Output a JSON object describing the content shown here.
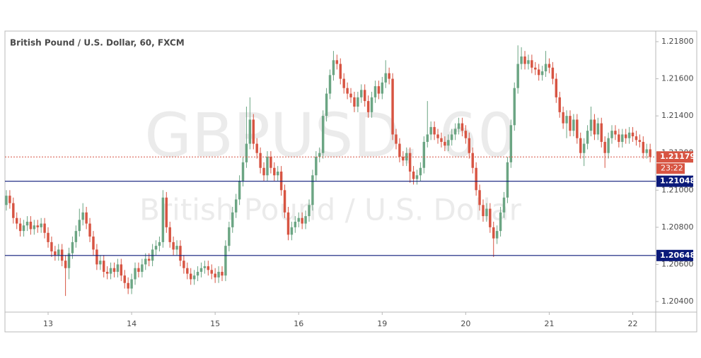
{
  "chart_data": {
    "type": "candlestick",
    "title": "British Pound / U.S. Dollar, 60, FXCM",
    "watermark": {
      "symbol": "GBPUSD, 60",
      "description": "British Pound / U.S. Dollar"
    },
    "up_color": "#6ba583",
    "down_color": "#d75442",
    "xlim": [
      -0.4,
      186.6
    ],
    "ylim": [
      1.20343,
      1.21857
    ],
    "yticks": [
      {
        "value": 1.204,
        "label": "1.20400"
      },
      {
        "value": 1.206,
        "label": "1.20600"
      },
      {
        "value": 1.208,
        "label": "1.20800"
      },
      {
        "value": 1.21,
        "label": "1.21000"
      },
      {
        "value": 1.212,
        "label": "1.21200"
      },
      {
        "value": 1.214,
        "label": "1.21400"
      },
      {
        "value": 1.216,
        "label": "1.21600"
      },
      {
        "value": 1.218,
        "label": "1.21800"
      }
    ],
    "xticks": [
      {
        "value": 12,
        "label": "13"
      },
      {
        "value": 36,
        "label": "14"
      },
      {
        "value": 60,
        "label": "15"
      },
      {
        "value": 84,
        "label": "16"
      },
      {
        "value": 108,
        "label": "19"
      },
      {
        "value": 132,
        "label": "20"
      },
      {
        "value": 156,
        "label": "21"
      },
      {
        "value": 180,
        "label": "22"
      }
    ],
    "levels": [
      {
        "value": 1.21048,
        "label": "1.21048",
        "color": "#0b1a7a"
      },
      {
        "value": 1.20648,
        "label": "1.20648",
        "color": "#0b1a7a"
      }
    ],
    "last_price": {
      "value": 1.21179,
      "label": "1.21179",
      "countdown": "23:22",
      "color": "#d75442"
    },
    "candles": [
      [
        1.2092,
        1.21,
        1.2089,
        1.2097
      ],
      [
        1.2097,
        1.21,
        1.209,
        1.2093
      ],
      [
        1.2093,
        1.2096,
        1.2082,
        1.2085
      ],
      [
        1.2085,
        1.2088,
        1.2079,
        1.2082
      ],
      [
        1.2082,
        1.2085,
        1.2075,
        1.2078
      ],
      [
        1.2078,
        1.2084,
        1.2075,
        1.2081
      ],
      [
        1.2081,
        1.2086,
        1.2078,
        1.2083
      ],
      [
        1.2083,
        1.2086,
        1.2076,
        1.2079
      ],
      [
        1.2079,
        1.2084,
        1.2076,
        1.2081
      ],
      [
        1.2081,
        1.2084,
        1.2077,
        1.208
      ],
      [
        1.208,
        1.2085,
        1.2077,
        1.2082
      ],
      [
        1.2082,
        1.2085,
        1.2074,
        1.2077
      ],
      [
        1.2077,
        1.208,
        1.2069,
        1.2072
      ],
      [
        1.2072,
        1.2075,
        1.2064,
        1.2067
      ],
      [
        1.2067,
        1.207,
        1.2062,
        1.2065
      ],
      [
        1.2065,
        1.2071,
        1.2062,
        1.2068
      ],
      [
        1.2068,
        1.2071,
        1.2059,
        1.2062
      ],
      [
        1.2062,
        1.2065,
        1.2043,
        1.2058
      ],
      [
        1.2058,
        1.2069,
        1.2052,
        1.2066
      ],
      [
        1.2066,
        1.2075,
        1.2063,
        1.2072
      ],
      [
        1.2072,
        1.2081,
        1.2069,
        1.2078
      ],
      [
        1.2078,
        1.209,
        1.2075,
        1.2084
      ],
      [
        1.2084,
        1.2093,
        1.2081,
        1.2088
      ],
      [
        1.2088,
        1.2091,
        1.2079,
        1.2082
      ],
      [
        1.2082,
        1.2085,
        1.2072,
        1.2075
      ],
      [
        1.2075,
        1.2078,
        1.2065,
        1.2068
      ],
      [
        1.2068,
        1.2071,
        1.2057,
        1.206
      ],
      [
        1.206,
        1.2065,
        1.2057,
        1.2062
      ],
      [
        1.2062,
        1.2065,
        1.2053,
        1.2056
      ],
      [
        1.2056,
        1.2059,
        1.2052,
        1.2055
      ],
      [
        1.2055,
        1.2061,
        1.2052,
        1.2058
      ],
      [
        1.2058,
        1.2061,
        1.2053,
        1.2056
      ],
      [
        1.2056,
        1.2063,
        1.2053,
        1.206
      ],
      [
        1.206,
        1.2063,
        1.2051,
        1.2054
      ],
      [
        1.2054,
        1.2057,
        1.2047,
        1.205
      ],
      [
        1.205,
        1.2053,
        1.2044,
        1.2047
      ],
      [
        1.2047,
        1.2055,
        1.2044,
        1.2052
      ],
      [
        1.2052,
        1.2061,
        1.2049,
        1.2058
      ],
      [
        1.2058,
        1.2061,
        1.2053,
        1.2056
      ],
      [
        1.2056,
        1.2063,
        1.2053,
        1.206
      ],
      [
        1.206,
        1.2066,
        1.2057,
        1.2063
      ],
      [
        1.2063,
        1.2066,
        1.2059,
        1.2062
      ],
      [
        1.2062,
        1.2071,
        1.2059,
        1.2068
      ],
      [
        1.2068,
        1.2073,
        1.2065,
        1.207
      ],
      [
        1.207,
        1.2075,
        1.2067,
        1.2072
      ],
      [
        1.2072,
        1.21,
        1.2069,
        1.2096
      ],
      [
        1.2096,
        1.2099,
        1.2077,
        1.208
      ],
      [
        1.208,
        1.2083,
        1.2069,
        1.2072
      ],
      [
        1.2072,
        1.2075,
        1.2065,
        1.2068
      ],
      [
        1.2068,
        1.2073,
        1.2065,
        1.207
      ],
      [
        1.207,
        1.2073,
        1.2059,
        1.2062
      ],
      [
        1.2062,
        1.2065,
        1.2055,
        1.2058
      ],
      [
        1.2058,
        1.2061,
        1.2052,
        1.2055
      ],
      [
        1.2055,
        1.2058,
        1.2049,
        1.2052
      ],
      [
        1.2052,
        1.2057,
        1.2049,
        1.2054
      ],
      [
        1.2054,
        1.2059,
        1.2051,
        1.2056
      ],
      [
        1.2056,
        1.2061,
        1.2053,
        1.2058
      ],
      [
        1.2058,
        1.2062,
        1.2055,
        1.2059
      ],
      [
        1.2059,
        1.2062,
        1.2054,
        1.2057
      ],
      [
        1.2057,
        1.206,
        1.2052,
        1.2055
      ],
      [
        1.2055,
        1.2058,
        1.205,
        1.2053
      ],
      [
        1.2053,
        1.2059,
        1.205,
        1.2056
      ],
      [
        1.2056,
        1.2059,
        1.2051,
        1.2054
      ],
      [
        1.2054,
        1.2073,
        1.2051,
        1.207
      ],
      [
        1.207,
        1.2083,
        1.2067,
        1.208
      ],
      [
        1.208,
        1.2091,
        1.2077,
        1.2088
      ],
      [
        1.2088,
        1.2098,
        1.2085,
        1.2095
      ],
      [
        1.2095,
        1.2108,
        1.2092,
        1.2105
      ],
      [
        1.2105,
        1.2118,
        1.2102,
        1.2115
      ],
      [
        1.2115,
        1.2145,
        1.2112,
        1.2125
      ],
      [
        1.2125,
        1.215,
        1.2122,
        1.2138
      ],
      [
        1.2138,
        1.2141,
        1.2122,
        1.2125
      ],
      [
        1.2125,
        1.2128,
        1.2117,
        1.212
      ],
      [
        1.212,
        1.2123,
        1.2109,
        1.2112
      ],
      [
        1.2112,
        1.2115,
        1.2105,
        1.2108
      ],
      [
        1.2108,
        1.2121,
        1.2105,
        1.2118
      ],
      [
        1.2118,
        1.2121,
        1.2109,
        1.2112
      ],
      [
        1.2112,
        1.2115,
        1.2105,
        1.2108
      ],
      [
        1.2108,
        1.2113,
        1.2105,
        1.211
      ],
      [
        1.211,
        1.2113,
        1.2097,
        1.21
      ],
      [
        1.21,
        1.2103,
        1.2085,
        1.2088
      ],
      [
        1.2088,
        1.2091,
        1.2073,
        1.2076
      ],
      [
        1.2076,
        1.2083,
        1.2073,
        1.208
      ],
      [
        1.208,
        1.2086,
        1.2077,
        1.2083
      ],
      [
        1.2083,
        1.2088,
        1.208,
        1.2085
      ],
      [
        1.2085,
        1.2088,
        1.2079,
        1.2082
      ],
      [
        1.2082,
        1.2089,
        1.2079,
        1.2086
      ],
      [
        1.2086,
        1.2095,
        1.2083,
        1.2092
      ],
      [
        1.2092,
        1.2111,
        1.2089,
        1.2108
      ],
      [
        1.2108,
        1.2121,
        1.2105,
        1.2118
      ],
      [
        1.2118,
        1.2123,
        1.2115,
        1.212
      ],
      [
        1.212,
        1.2143,
        1.2117,
        1.214
      ],
      [
        1.214,
        1.2155,
        1.2137,
        1.2152
      ],
      [
        1.2152,
        1.2165,
        1.2149,
        1.2162
      ],
      [
        1.2162,
        1.2175,
        1.2159,
        1.217
      ],
      [
        1.217,
        1.2173,
        1.2165,
        1.2168
      ],
      [
        1.2168,
        1.2171,
        1.2157,
        1.216
      ],
      [
        1.216,
        1.2163,
        1.2152,
        1.2155
      ],
      [
        1.2155,
        1.2158,
        1.2149,
        1.2152
      ],
      [
        1.2152,
        1.2155,
        1.2147,
        1.215
      ],
      [
        1.215,
        1.2153,
        1.2142,
        1.2145
      ],
      [
        1.2145,
        1.2153,
        1.2142,
        1.215
      ],
      [
        1.215,
        1.2157,
        1.2147,
        1.2154
      ],
      [
        1.2154,
        1.2157,
        1.2145,
        1.2148
      ],
      [
        1.2148,
        1.2151,
        1.2139,
        1.2142
      ],
      [
        1.2142,
        1.2153,
        1.2139,
        1.215
      ],
      [
        1.215,
        1.2159,
        1.2147,
        1.2156
      ],
      [
        1.2156,
        1.2159,
        1.2149,
        1.2152
      ],
      [
        1.2152,
        1.2161,
        1.2149,
        1.2158
      ],
      [
        1.2158,
        1.217,
        1.2155,
        1.2163
      ],
      [
        1.2163,
        1.2166,
        1.2157,
        1.216
      ],
      [
        1.216,
        1.2163,
        1.2127,
        1.213
      ],
      [
        1.213,
        1.2133,
        1.2122,
        1.2125
      ],
      [
        1.2125,
        1.2128,
        1.2115,
        1.2118
      ],
      [
        1.2118,
        1.2121,
        1.2113,
        1.2116
      ],
      [
        1.2116,
        1.2123,
        1.2113,
        1.212
      ],
      [
        1.212,
        1.2123,
        1.2104,
        1.211
      ],
      [
        1.211,
        1.2113,
        1.2103,
        1.2106
      ],
      [
        1.2106,
        1.2111,
        1.2103,
        1.2108
      ],
      [
        1.2108,
        1.2115,
        1.2105,
        1.2112
      ],
      [
        1.2112,
        1.2129,
        1.2109,
        1.2126
      ],
      [
        1.2126,
        1.2148,
        1.2123,
        1.213
      ],
      [
        1.213,
        1.2137,
        1.2127,
        1.2134
      ],
      [
        1.2134,
        1.2137,
        1.2127,
        1.213
      ],
      [
        1.213,
        1.2133,
        1.2125,
        1.2128
      ],
      [
        1.2128,
        1.2131,
        1.2123,
        1.2126
      ],
      [
        1.2126,
        1.2129,
        1.2121,
        1.2124
      ],
      [
        1.2124,
        1.213,
        1.2121,
        1.2127
      ],
      [
        1.2127,
        1.2133,
        1.2124,
        1.213
      ],
      [
        1.213,
        1.2136,
        1.2127,
        1.2133
      ],
      [
        1.2133,
        1.2139,
        1.213,
        1.2136
      ],
      [
        1.2136,
        1.2139,
        1.2129,
        1.2132
      ],
      [
        1.2132,
        1.2135,
        1.2125,
        1.2128
      ],
      [
        1.2128,
        1.2131,
        1.2117,
        1.212
      ],
      [
        1.212,
        1.2123,
        1.2109,
        1.2112
      ],
      [
        1.2112,
        1.2115,
        1.2097,
        1.21
      ],
      [
        1.21,
        1.2103,
        1.2089,
        1.2092
      ],
      [
        1.2092,
        1.2095,
        1.2083,
        1.2086
      ],
      [
        1.2086,
        1.2093,
        1.2083,
        1.209
      ],
      [
        1.209,
        1.2093,
        1.2077,
        1.208
      ],
      [
        1.208,
        1.2083,
        1.2064,
        1.2074
      ],
      [
        1.2074,
        1.2081,
        1.2071,
        1.2078
      ],
      [
        1.2078,
        1.2091,
        1.2075,
        1.2088
      ],
      [
        1.2088,
        1.2099,
        1.2085,
        1.2096
      ],
      [
        1.2096,
        1.2118,
        1.2093,
        1.2115
      ],
      [
        1.2115,
        1.2138,
        1.2112,
        1.2135
      ],
      [
        1.2135,
        1.2158,
        1.2132,
        1.2155
      ],
      [
        1.2155,
        1.2178,
        1.2152,
        1.2168
      ],
      [
        1.2168,
        1.2177,
        1.2165,
        1.2172
      ],
      [
        1.2172,
        1.2175,
        1.2165,
        1.2168
      ],
      [
        1.2168,
        1.2173,
        1.2165,
        1.217
      ],
      [
        1.217,
        1.2173,
        1.2163,
        1.2166
      ],
      [
        1.2166,
        1.2169,
        1.2162,
        1.2165
      ],
      [
        1.2165,
        1.2168,
        1.2159,
        1.2162
      ],
      [
        1.2162,
        1.2167,
        1.2159,
        1.2164
      ],
      [
        1.2164,
        1.2175,
        1.2161,
        1.2168
      ],
      [
        1.2168,
        1.2171,
        1.2163,
        1.2166
      ],
      [
        1.2166,
        1.2169,
        1.2157,
        1.216
      ],
      [
        1.216,
        1.2163,
        1.2147,
        1.215
      ],
      [
        1.215,
        1.2153,
        1.2139,
        1.2142
      ],
      [
        1.2142,
        1.2145,
        1.2133,
        1.2136
      ],
      [
        1.2136,
        1.2143,
        1.2128,
        1.214
      ],
      [
        1.214,
        1.2143,
        1.2129,
        1.2132
      ],
      [
        1.2132,
        1.2141,
        1.2129,
        1.2138
      ],
      [
        1.2138,
        1.2141,
        1.2125,
        1.2128
      ],
      [
        1.2128,
        1.2131,
        1.2117,
        1.212
      ],
      [
        1.212,
        1.2128,
        1.2113,
        1.2125
      ],
      [
        1.2125,
        1.2135,
        1.2122,
        1.2132
      ],
      [
        1.2132,
        1.2145,
        1.2129,
        1.2138
      ],
      [
        1.2138,
        1.2141,
        1.2127,
        1.213
      ],
      [
        1.213,
        1.2139,
        1.2127,
        1.2136
      ],
      [
        1.2136,
        1.2139,
        1.2123,
        1.2126
      ],
      [
        1.2126,
        1.2129,
        1.2112,
        1.212
      ],
      [
        1.212,
        1.2131,
        1.2117,
        1.2128
      ],
      [
        1.2128,
        1.2135,
        1.2125,
        1.2132
      ],
      [
        1.2132,
        1.2135,
        1.2127,
        1.213
      ],
      [
        1.213,
        1.2133,
        1.2123,
        1.2126
      ],
      [
        1.2126,
        1.2133,
        1.2123,
        1.213
      ],
      [
        1.213,
        1.2133,
        1.2125,
        1.2128
      ],
      [
        1.2128,
        1.2134,
        1.2125,
        1.2131
      ],
      [
        1.2131,
        1.2134,
        1.2126,
        1.2129
      ],
      [
        1.2129,
        1.2132,
        1.2124,
        1.2127
      ],
      [
        1.2127,
        1.213,
        1.2123,
        1.2126
      ],
      [
        1.2126,
        1.2129,
        1.2117,
        1.212
      ],
      [
        1.212,
        1.2125,
        1.2117,
        1.2122
      ],
      [
        1.2122,
        1.2125,
        1.2115,
        1.21179
      ]
    ]
  }
}
